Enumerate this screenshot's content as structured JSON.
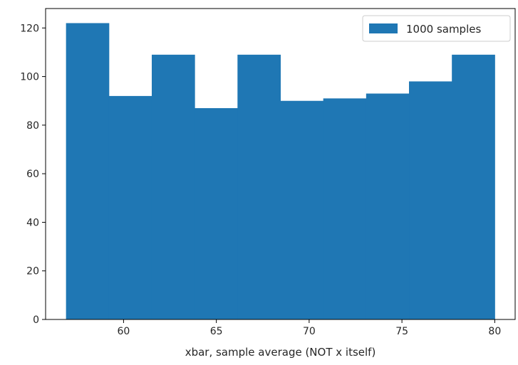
{
  "chart_data": {
    "type": "bar",
    "subtype": "histogram",
    "bin_edges": [
      56.9,
      59.21,
      61.52,
      63.83,
      66.14,
      68.45,
      70.76,
      73.07,
      75.38,
      77.69,
      80.0
    ],
    "values": [
      122,
      92,
      109,
      87,
      109,
      90,
      91,
      93,
      98,
      109
    ],
    "color": "#1f77b4",
    "xlabel": "xbar, sample average (NOT x itself)",
    "ylabel": "",
    "xlim": [
      55.8,
      81.1
    ],
    "ylim": [
      0,
      128
    ],
    "xticks": [
      60,
      65,
      70,
      75,
      80
    ],
    "yticks": [
      0,
      20,
      40,
      60,
      80,
      100,
      120
    ],
    "legend": {
      "position": "upper right",
      "entries": [
        {
          "label": "1000 samples",
          "color": "#1f77b4"
        }
      ]
    },
    "grid": false
  }
}
